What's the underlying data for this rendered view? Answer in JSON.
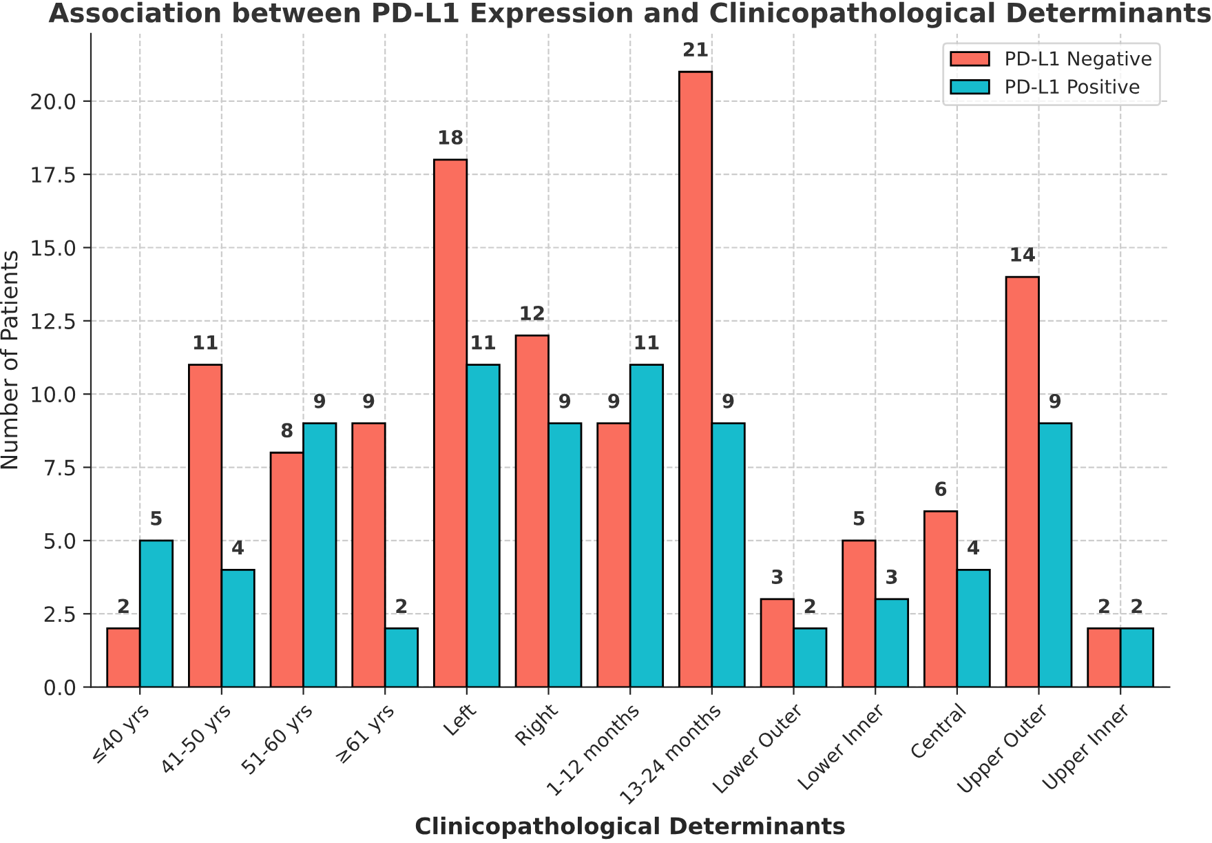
{
  "chart_data": {
    "type": "bar",
    "title": "Association between PD-L1 Expression and Clinicopathological Determinants",
    "xlabel": "Clinicopathological Determinants",
    "ylabel": "Number of Patients",
    "categories": [
      "≤40 yrs",
      "41-50 yrs",
      "51-60 yrs",
      "≥61 yrs",
      "Left",
      "Right",
      "1-12 months",
      "13-24 months",
      "Lower Outer",
      "Lower Inner",
      "Central",
      "Upper Outer",
      "Upper Inner"
    ],
    "series": [
      {
        "name": "PD-L1 Negative",
        "color": "#fa6e5e",
        "values": [
          2,
          11,
          8,
          9,
          18,
          12,
          9,
          21,
          3,
          5,
          6,
          14,
          2
        ]
      },
      {
        "name": "PD-L1 Positive",
        "color": "#17bccd",
        "values": [
          5,
          4,
          9,
          2,
          11,
          9,
          11,
          9,
          2,
          3,
          4,
          9,
          2
        ]
      }
    ],
    "ylim": [
      0,
      22.3
    ],
    "yticks": [
      {
        "value": 0,
        "label": "0.0"
      },
      {
        "value": 2.5,
        "label": "2.5"
      },
      {
        "value": 5,
        "label": "5.0"
      },
      {
        "value": 7.5,
        "label": "7.5"
      },
      {
        "value": 10,
        "label": "10.0"
      },
      {
        "value": 12.5,
        "label": "12.5"
      },
      {
        "value": 15,
        "label": "15.0"
      },
      {
        "value": 17.5,
        "label": "17.5"
      },
      {
        "value": 20,
        "label": "20.0"
      }
    ],
    "grid": true,
    "legend": "top right",
    "data_labels": true
  }
}
